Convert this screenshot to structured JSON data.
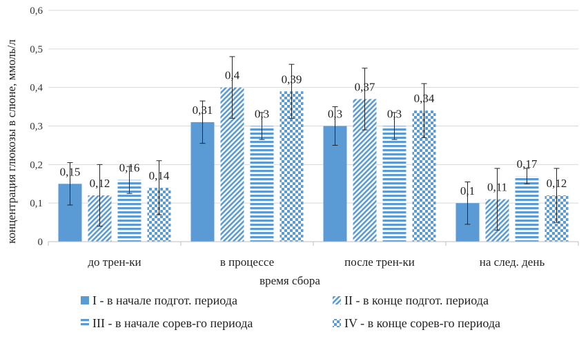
{
  "chart_data": {
    "type": "bar",
    "xlabel": "время сбора",
    "ylabel": "концентрация глюкозы в слюне, ммоль/л",
    "ylim": [
      0,
      0.6
    ],
    "yticks": [
      "0",
      "0,1",
      "0,2",
      "0,3",
      "0,4",
      "0,5",
      "0,6"
    ],
    "grid": true,
    "legend_position": "bottom",
    "categories": [
      "до трен-ки",
      "в процессе",
      "после трен-ки",
      "на след. день"
    ],
    "series": [
      {
        "name": "I - в начале подгот. периода",
        "values": [
          0.15,
          0.31,
          0.3,
          0.1
        ],
        "labels": [
          "0,15",
          "0,31",
          "0,3",
          "0,1"
        ],
        "error": [
          0.055,
          0.055,
          0.05,
          0.055
        ],
        "color": "#5b9bd5",
        "pattern": "solid"
      },
      {
        "name": "II - в конце подгот. периода",
        "values": [
          0.12,
          0.4,
          0.37,
          0.11
        ],
        "labels": [
          "0,12",
          "0,4",
          "0,37",
          "0,11"
        ],
        "error": [
          0.08,
          0.08,
          0.08,
          0.08
        ],
        "color": "#5b9bd5",
        "pattern": "diagonal"
      },
      {
        "name": "III - в начале сорев-го периода",
        "values": [
          0.16,
          0.3,
          0.3,
          0.17
        ],
        "labels": [
          "0,16",
          "0,3",
          "0,3",
          "0,17"
        ],
        "error": [
          0.035,
          0.035,
          0.035,
          0.02
        ],
        "color": "#5b9bd5",
        "pattern": "horizontal"
      },
      {
        "name": "IV - в конце сорев-го периода",
        "values": [
          0.14,
          0.39,
          0.34,
          0.12
        ],
        "labels": [
          "0,14",
          "0,39",
          "0,34",
          "0,12"
        ],
        "error": [
          0.07,
          0.07,
          0.07,
          0.07
        ],
        "color": "#5b9bd5",
        "pattern": "checker"
      }
    ]
  }
}
